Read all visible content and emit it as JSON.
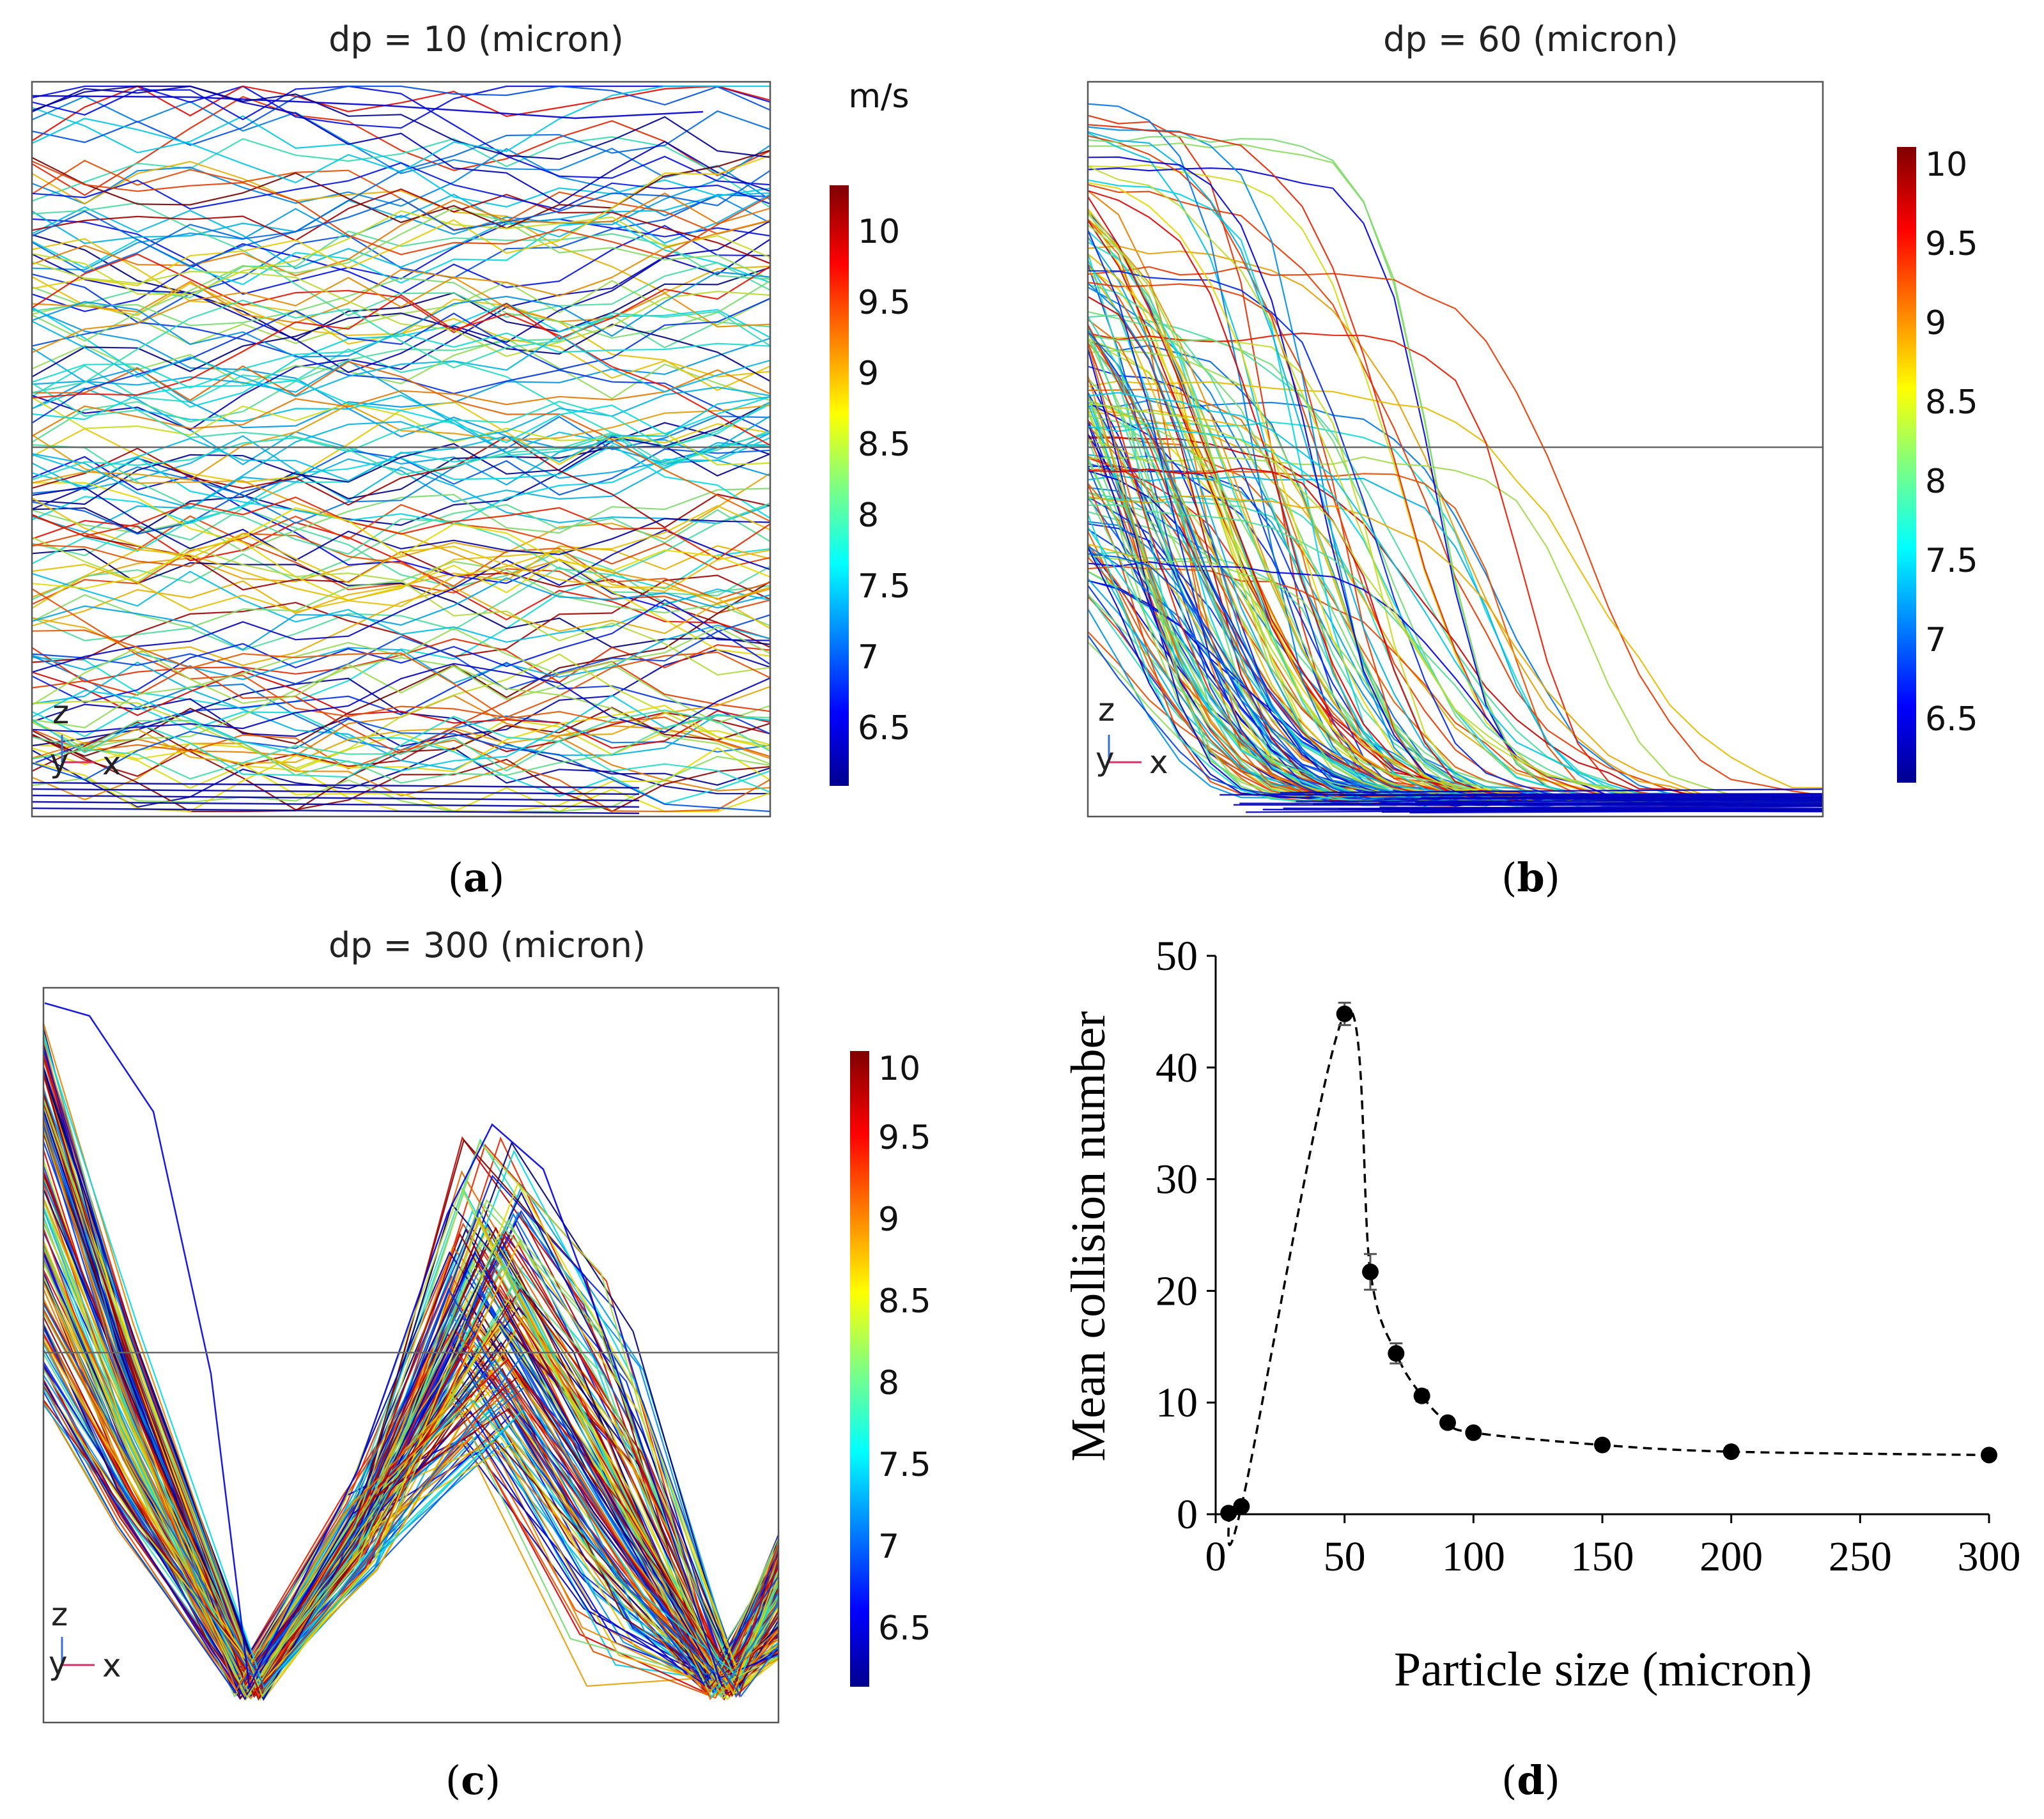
{
  "colors": {
    "frame": "#555555",
    "line": "#000000"
  },
  "unit": "m/s",
  "panels": [
    {
      "id": "a",
      "label": "a",
      "title": "dp = 10 (micron)",
      "axes_labels": [
        "z",
        "y",
        "x"
      ],
      "colorbar_ticks": [
        "10",
        "9.5",
        "9",
        "8.5",
        "8",
        "7.5",
        "7",
        "6.5"
      ]
    },
    {
      "id": "b",
      "label": "b",
      "title": "dp = 60 (micron)",
      "axes_labels": [
        "z",
        "y",
        "x"
      ],
      "colorbar_ticks": [
        "10",
        "9.5",
        "9",
        "8.5",
        "8",
        "7.5",
        "7",
        "6.5"
      ]
    },
    {
      "id": "c",
      "label": "c",
      "title": "dp = 300 (micron)",
      "axes_labels": [
        "z",
        "y",
        "x"
      ],
      "colorbar_ticks": [
        "10",
        "9.5",
        "9",
        "8.5",
        "8",
        "7.5",
        "7",
        "6.5"
      ]
    }
  ],
  "chart_data": {
    "type": "scatter",
    "label": "d",
    "title": "",
    "xlabel": "Particle size (micron)",
    "ylabel": "Mean collision number",
    "xlim": [
      0,
      300
    ],
    "ylim": [
      0,
      50
    ],
    "xticks": [
      0,
      50,
      100,
      150,
      200,
      250,
      300
    ],
    "yticks": [
      0,
      10,
      20,
      30,
      40,
      50
    ],
    "series": [
      {
        "name": "Mean collision number",
        "x": [
          5,
          10,
          50,
          60,
          70,
          80,
          90,
          100,
          150,
          200,
          300
        ],
        "y": [
          0.1,
          0.7,
          44.8,
          21.7,
          14.4,
          10.6,
          8.2,
          7.3,
          6.2,
          5.6,
          5.3
        ],
        "err": [
          0.2,
          0.3,
          1.0,
          1.6,
          0.9,
          0.5,
          0.4,
          0.4,
          0.3,
          0.3,
          0.3
        ]
      }
    ],
    "trend_line": "dashed"
  }
}
